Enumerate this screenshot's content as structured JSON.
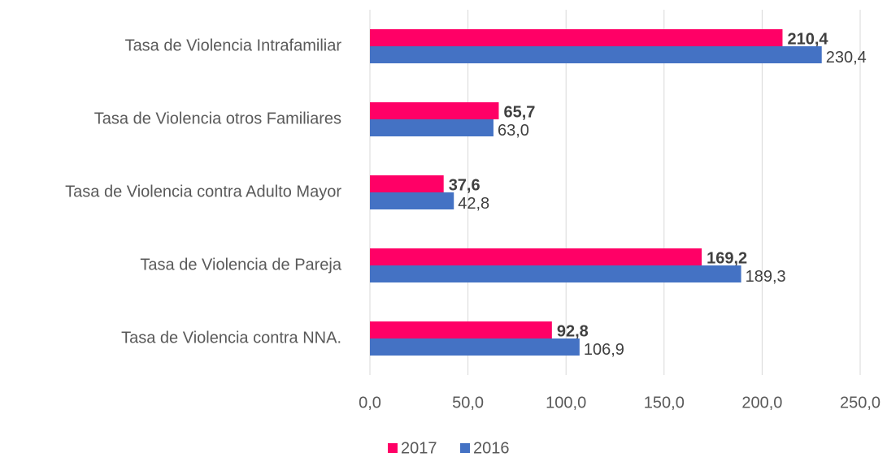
{
  "chart_data": {
    "type": "hbar",
    "categories": [
      "Tasa de Violencia Intrafamiliar",
      "Tasa de Violencia otros Familiares",
      "Tasa de Violencia contra Adulto Mayor",
      "Tasa de Violencia de Pareja",
      "Tasa de Violencia contra NNA."
    ],
    "series": [
      {
        "name": "2017",
        "color": "#ff0066",
        "values": [
          210.4,
          65.7,
          37.6,
          169.2,
          92.8
        ],
        "value_labels": [
          "210,4",
          "65,7",
          "37,6",
          "169,2",
          "92,8"
        ]
      },
      {
        "name": "2016",
        "color": "#4472c4",
        "values": [
          230.4,
          63.0,
          42.8,
          189.3,
          106.9
        ],
        "value_labels": [
          "230,4",
          "63,0",
          "42,8",
          "189,3",
          "106,9"
        ]
      }
    ],
    "xlim": [
      0,
      250
    ],
    "xticks": [
      {
        "value": 0,
        "label": "0,0"
      },
      {
        "value": 50,
        "label": "50,0"
      },
      {
        "value": 100,
        "label": "100,0"
      },
      {
        "value": 150,
        "label": "150,0"
      },
      {
        "value": 200,
        "label": "200,0"
      },
      {
        "value": 250,
        "label": "250,0"
      }
    ],
    "grid": true,
    "legend": "bottom"
  }
}
